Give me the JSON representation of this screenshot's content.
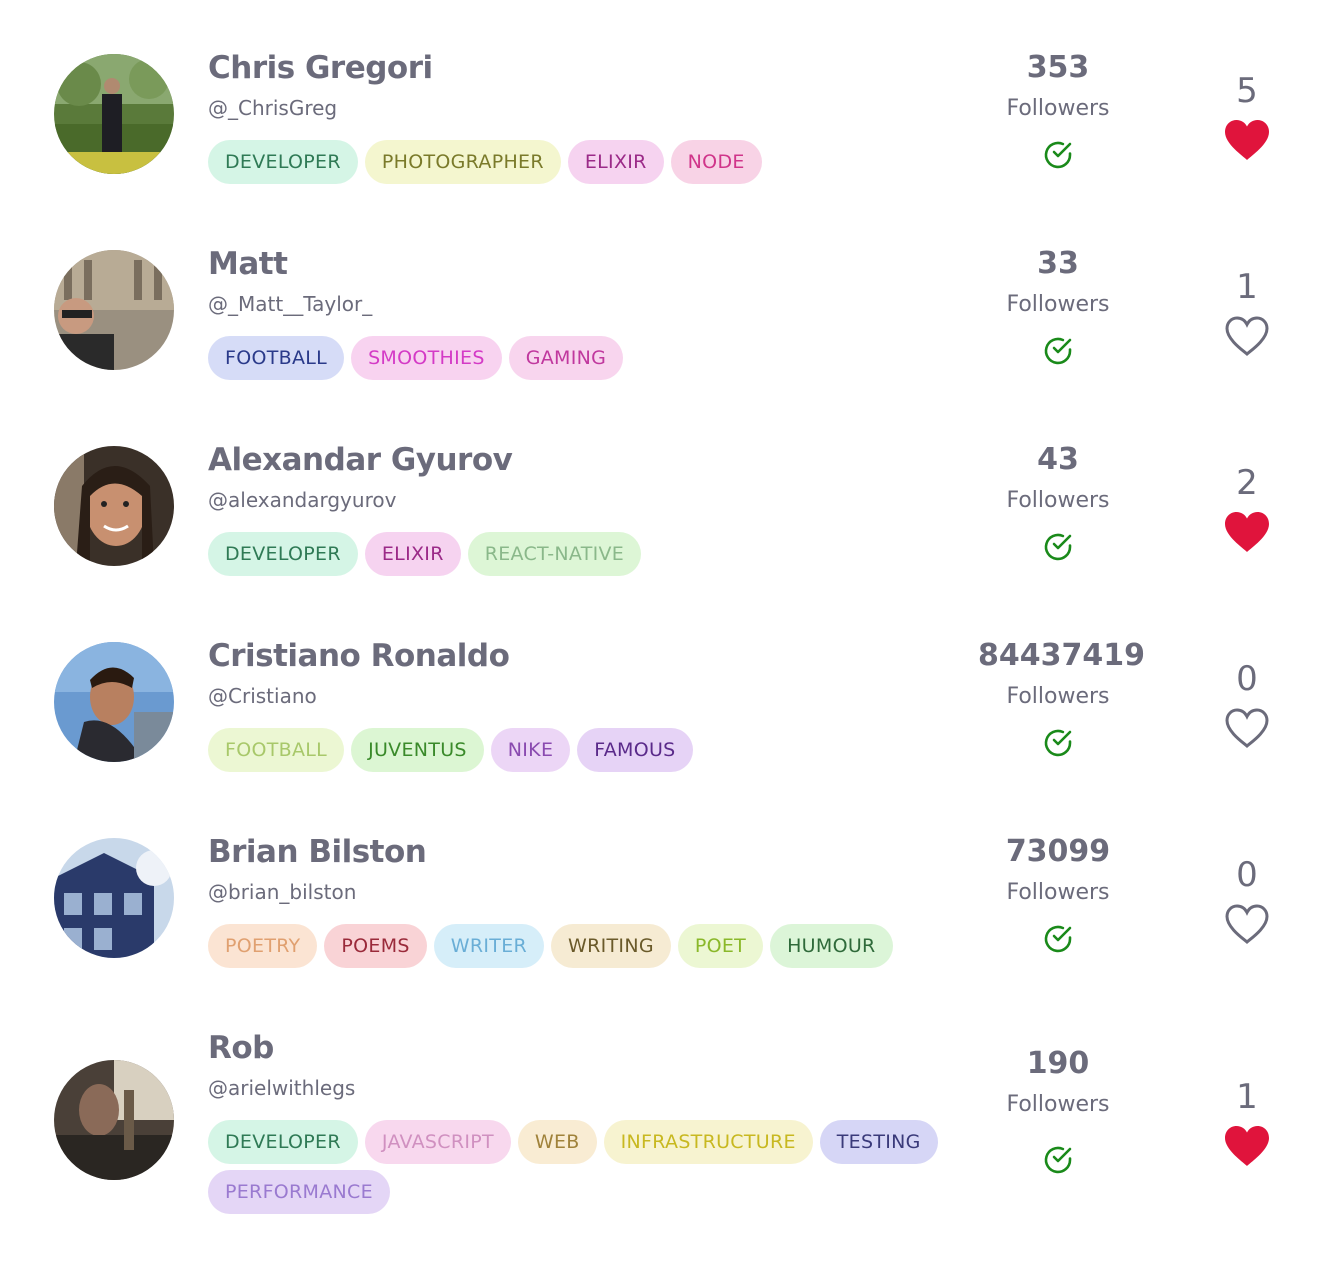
{
  "colors": {
    "text": "#6b6b7b",
    "heart_filled": "#e0143c",
    "heart_outline": "#6b6b7b",
    "check": "#1a8a1a"
  },
  "users": [
    {
      "name": "Chris Gregori",
      "handle": "@_ChrisGreg",
      "followers": "353",
      "followers_label": "Followers",
      "likes": "5",
      "liked": true,
      "tags": [
        {
          "label": "DEVELOPER",
          "bg": "#d5f5e6",
          "fg": "#2f7a55"
        },
        {
          "label": "PHOTOGRAPHER",
          "bg": "#f4f6cf",
          "fg": "#7a7a2a"
        },
        {
          "label": "ELIXIR",
          "bg": "#f6d3f0",
          "fg": "#9b2a88"
        },
        {
          "label": "NODE",
          "bg": "#f8d3e6",
          "fg": "#d0358a"
        }
      ]
    },
    {
      "name": "Matt",
      "handle": "@_Matt__Taylor_",
      "followers": "33",
      "followers_label": "Followers",
      "likes": "1",
      "liked": false,
      "tags": [
        {
          "label": "FOOTBALL",
          "bg": "#d6dcf7",
          "fg": "#2a3a8a"
        },
        {
          "label": "SMOOTHIES",
          "bg": "#f8d3f0",
          "fg": "#d43ac6"
        },
        {
          "label": "GAMING",
          "bg": "#f8d5ee",
          "fg": "#c0389e"
        }
      ]
    },
    {
      "name": "Alexandar Gyurov",
      "handle": "@alexandargyurov",
      "followers": "43",
      "followers_label": "Followers",
      "likes": "2",
      "liked": true,
      "tags": [
        {
          "label": "DEVELOPER",
          "bg": "#d5f5e6",
          "fg": "#2f7a55"
        },
        {
          "label": "ELIXIR",
          "bg": "#f6d3f0",
          "fg": "#9b2a88"
        },
        {
          "label": "REACT-NATIVE",
          "bg": "#ddf6d6",
          "fg": "#8ab88a"
        }
      ]
    },
    {
      "name": "Cristiano Ronaldo",
      "handle": "@Cristiano",
      "followers": "84437419",
      "followers_label": "Followers",
      "likes": "0",
      "liked": false,
      "tags": [
        {
          "label": "FOOTBALL",
          "bg": "#ecf7d3",
          "fg": "#a8c86a"
        },
        {
          "label": "JUVENTUS",
          "bg": "#dcf6d3",
          "fg": "#3a8a2a"
        },
        {
          "label": "NIKE",
          "bg": "#ecd6f6",
          "fg": "#8a4ab0"
        },
        {
          "label": "FAMOUS",
          "bg": "#e6d3f6",
          "fg": "#5a2a8a"
        }
      ]
    },
    {
      "name": "Brian Bilston",
      "handle": "@brian_bilston",
      "followers": "73099",
      "followers_label": "Followers",
      "likes": "0",
      "liked": false,
      "tags": [
        {
          "label": "POETRY",
          "bg": "#fbe4d3",
          "fg": "#e0a070"
        },
        {
          "label": "POEMS",
          "bg": "#f9d3d6",
          "fg": "#9a2a3a"
        },
        {
          "label": "WRITER",
          "bg": "#d6eef9",
          "fg": "#6aaed6"
        },
        {
          "label": "WRITING",
          "bg": "#f6ebd3",
          "fg": "#6a5a2a"
        },
        {
          "label": "POET",
          "bg": "#ecf7d3",
          "fg": "#8ab82a"
        },
        {
          "label": "HUMOUR",
          "bg": "#dcf5d8",
          "fg": "#2f6a3a"
        }
      ]
    },
    {
      "name": "Rob",
      "handle": "@arielwithlegs",
      "followers": "190",
      "followers_label": "Followers",
      "likes": "1",
      "liked": true,
      "tags": [
        {
          "label": "DEVELOPER",
          "bg": "#d5f5e6",
          "fg": "#2f7a55"
        },
        {
          "label": "JAVASCRIPT",
          "bg": "#f8d8ee",
          "fg": "#d090c0"
        },
        {
          "label": "WEB",
          "bg": "#f9ecd3",
          "fg": "#a0823a"
        },
        {
          "label": "INFRASTRUCTURE",
          "bg": "#f7f3d0",
          "fg": "#c8b820"
        },
        {
          "label": "TESTING",
          "bg": "#d6d6f6",
          "fg": "#3a3a7a"
        },
        {
          "label": "PERFORMANCE",
          "bg": "#e4d6f6",
          "fg": "#9a7ad0"
        }
      ]
    }
  ]
}
